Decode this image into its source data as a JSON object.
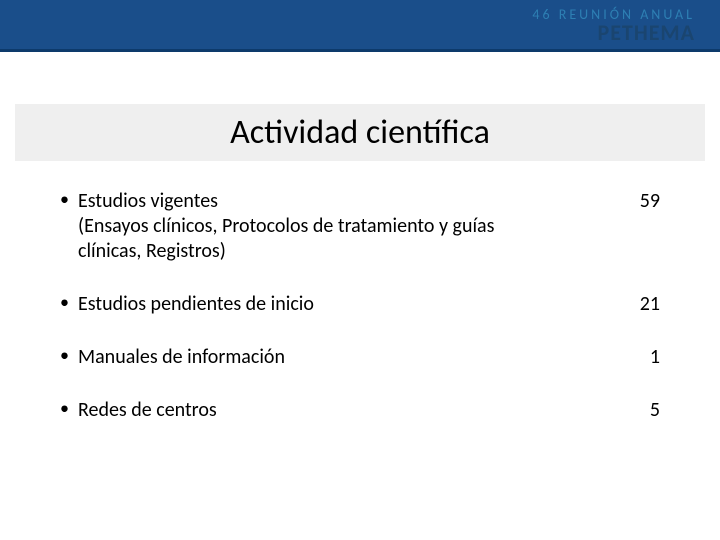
{
  "header": {
    "subtitle": "46 REUNIÓN ANUAL",
    "brand": "PETHEMA",
    "bar_color": "#1a4e8a",
    "subtitle_color": "#2d7fb3",
    "brand_color": "#1a4570"
  },
  "title": {
    "text": "Actividad científica",
    "background": "#efefef",
    "fontsize": 34
  },
  "items": [
    {
      "label": "Estudios vigentes",
      "sub": "(Ensayos clínicos, Protocolos de tratamiento y guías clínicas, Registros)",
      "value": "59"
    },
    {
      "label": "Estudios pendientes  de inicio",
      "sub": "",
      "value": "21"
    },
    {
      "label": "Manuales de información",
      "sub": "",
      "value": "1"
    },
    {
      "label": "Redes de centros",
      "sub": "",
      "value": "5"
    }
  ],
  "body_fontsize": 20,
  "text_color": "#000000",
  "background_color": "#ffffff"
}
